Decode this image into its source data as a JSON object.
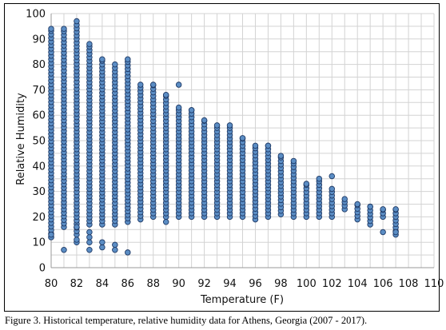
{
  "caption": "Figure 3.  Historical temperature, relative humidity data for Athens, Georgia (2007 - 2017).",
  "chart_data": {
    "type": "scatter",
    "xlabel": "Temperature (F)",
    "ylabel": "Relative Humidity",
    "xlim": [
      80,
      110
    ],
    "ylim": [
      0,
      100
    ],
    "xticks": [
      80,
      82,
      84,
      86,
      88,
      90,
      92,
      94,
      96,
      98,
      100,
      102,
      104,
      106,
      108,
      110
    ],
    "yticks": [
      0,
      10,
      20,
      30,
      40,
      50,
      60,
      70,
      80,
      90,
      100
    ],
    "grid": true,
    "legend": "none",
    "marker_color": "#5b8dc4",
    "marker_edge_color": "#1f3a66",
    "columns": [
      {
        "x": 80,
        "y_min": 12,
        "y_max": 94,
        "extra": [
          12,
          13
        ]
      },
      {
        "x": 81,
        "y_min": 16,
        "y_max": 94,
        "extra": [
          7
        ]
      },
      {
        "x": 82,
        "y_min": 13,
        "y_max": 97,
        "extra": [
          10,
          11,
          16
        ]
      },
      {
        "x": 83,
        "y_min": 17,
        "y_max": 88,
        "extra": [
          7,
          10,
          12,
          14
        ]
      },
      {
        "x": 84,
        "y_min": 17,
        "y_max": 82,
        "extra": [
          8,
          10
        ]
      },
      {
        "x": 85,
        "y_min": 17,
        "y_max": 80,
        "extra": [
          7,
          9
        ]
      },
      {
        "x": 86,
        "y_min": 18,
        "y_max": 82,
        "extra": [
          6
        ]
      },
      {
        "x": 87,
        "y_min": 19,
        "y_max": 72,
        "extra": []
      },
      {
        "x": 88,
        "y_min": 20,
        "y_max": 72,
        "extra": []
      },
      {
        "x": 89,
        "y_min": 20,
        "y_max": 68,
        "extra": [
          18
        ]
      },
      {
        "x": 90,
        "y_min": 20,
        "y_max": 63,
        "extra": [
          72
        ]
      },
      {
        "x": 91,
        "y_min": 20,
        "y_max": 62,
        "extra": []
      },
      {
        "x": 92,
        "y_min": 20,
        "y_max": 58,
        "extra": []
      },
      {
        "x": 93,
        "y_min": 20,
        "y_max": 56,
        "extra": []
      },
      {
        "x": 94,
        "y_min": 20,
        "y_max": 56,
        "extra": []
      },
      {
        "x": 95,
        "y_min": 20,
        "y_max": 51,
        "extra": []
      },
      {
        "x": 96,
        "y_min": 19,
        "y_max": 48,
        "extra": []
      },
      {
        "x": 97,
        "y_min": 20,
        "y_max": 48,
        "extra": []
      },
      {
        "x": 98,
        "y_min": 21,
        "y_max": 44,
        "extra": []
      },
      {
        "x": 99,
        "y_min": 20,
        "y_max": 42,
        "extra": []
      },
      {
        "x": 100,
        "y_min": 20,
        "y_max": 33,
        "extra": []
      },
      {
        "x": 101,
        "y_min": 20,
        "y_max": 35,
        "extra": []
      },
      {
        "x": 102,
        "y_min": 20,
        "y_max": 31,
        "extra": [
          36
        ]
      },
      {
        "x": 103,
        "y_min": 23,
        "y_max": 27,
        "extra": []
      },
      {
        "x": 104,
        "y_min": 19,
        "y_max": 25,
        "extra": []
      },
      {
        "x": 105,
        "y_min": 17,
        "y_max": 24,
        "extra": []
      },
      {
        "x": 106,
        "y_min": 20,
        "y_max": 23,
        "extra": [
          14
        ]
      },
      {
        "x": 107,
        "y_min": 13,
        "y_max": 23,
        "extra": [
          14
        ]
      }
    ]
  }
}
